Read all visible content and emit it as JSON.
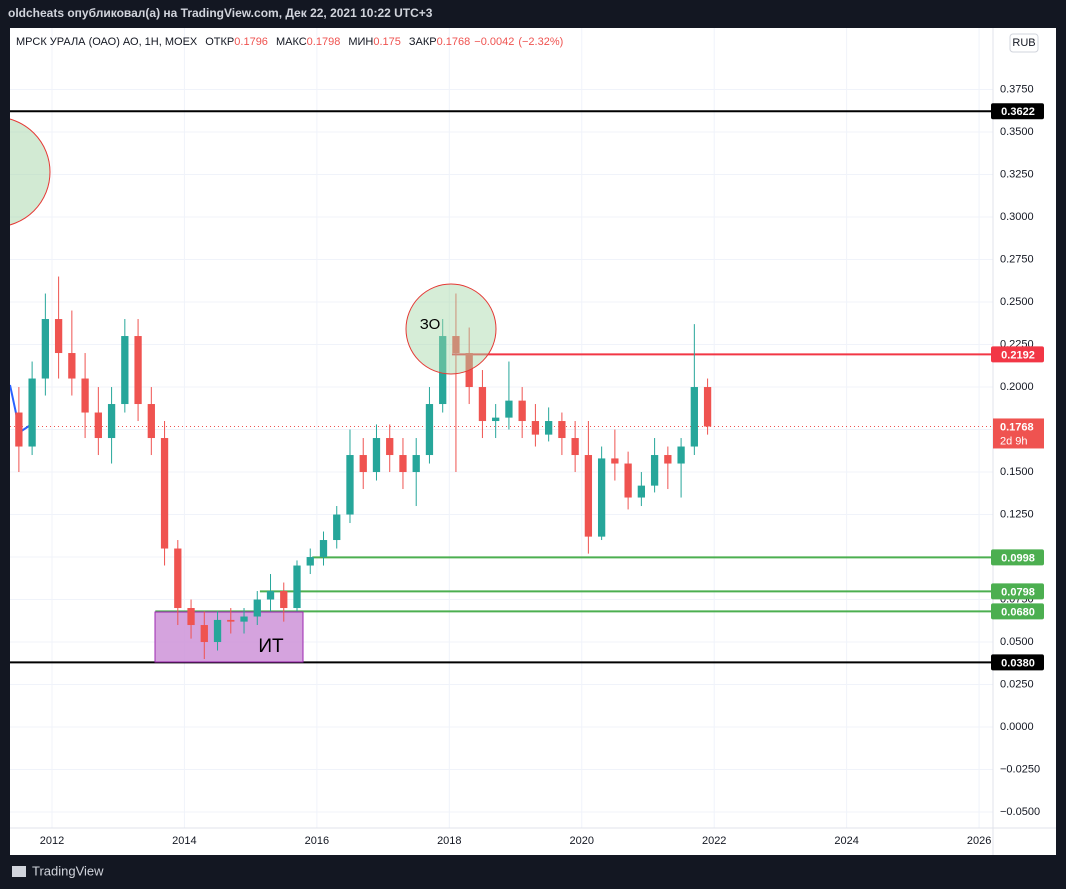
{
  "header": {
    "title": "oldcheats опубликовал(а) на TradingView.com, Дек 22, 2021 10:22 UTC+3"
  },
  "footer": {
    "brand": "TradingView"
  },
  "chart_data": {
    "type": "candlestick",
    "symbol": "МРСК УРАЛА (ОАО) АО, 1Н, MOEX",
    "ohlc_legend": [
      {
        "name": "ОТКР",
        "value": 0.1796
      },
      {
        "name": "МАКС",
        "value": 0.1798
      },
      {
        "name": "МИН",
        "value": 0.175
      },
      {
        "name": "ЗАКР",
        "value": 0.1768
      }
    ],
    "change": {
      "value": -0.0042,
      "label": "−0.0042"
    },
    "change_pct": {
      "value": -2.32,
      "label": "(−2.32%)"
    },
    "currency": "RUB",
    "up_color": "#26a69a",
    "down_color": "#ef5350",
    "x": [
      2011.5,
      2011.7,
      2011.9,
      2012.1,
      2012.3,
      2012.5,
      2012.7,
      2012.9,
      2013.1,
      2013.3,
      2013.5,
      2013.7,
      2013.9,
      2014.1,
      2014.3,
      2014.5,
      2014.7,
      2014.9,
      2015.1,
      2015.3,
      2015.5,
      2015.7,
      2015.9,
      2016.1,
      2016.3,
      2016.5,
      2016.7,
      2016.9,
      2017.1,
      2017.3,
      2017.5,
      2017.7,
      2017.9,
      2018.1,
      2018.3,
      2018.5,
      2018.7,
      2018.9,
      2019.1,
      2019.3,
      2019.5,
      2019.7,
      2019.9,
      2020.1,
      2020.3,
      2020.5,
      2020.7,
      2020.9,
      2021.1,
      2021.3,
      2021.5,
      2021.7,
      2021.9
    ],
    "open": [
      0.185,
      0.165,
      0.205,
      0.24,
      0.22,
      0.205,
      0.185,
      0.17,
      0.19,
      0.23,
      0.19,
      0.17,
      0.105,
      0.07,
      0.06,
      0.05,
      0.063,
      0.062,
      0.065,
      0.075,
      0.08,
      0.07,
      0.095,
      0.1,
      0.11,
      0.125,
      0.16,
      0.15,
      0.17,
      0.16,
      0.15,
      0.16,
      0.19,
      0.23,
      0.22,
      0.2,
      0.18,
      0.182,
      0.192,
      0.18,
      0.172,
      0.18,
      0.17,
      0.16,
      0.112,
      0.158,
      0.155,
      0.135,
      0.142,
      0.16,
      0.155,
      0.165,
      0.2
    ],
    "high": [
      0.2,
      0.215,
      0.255,
      0.265,
      0.245,
      0.22,
      0.2,
      0.2,
      0.24,
      0.24,
      0.2,
      0.18,
      0.11,
      0.075,
      0.068,
      0.068,
      0.07,
      0.07,
      0.08,
      0.09,
      0.085,
      0.098,
      0.105,
      0.115,
      0.13,
      0.175,
      0.17,
      0.178,
      0.178,
      0.17,
      0.17,
      0.2,
      0.24,
      0.255,
      0.235,
      0.21,
      0.19,
      0.215,
      0.2,
      0.19,
      0.188,
      0.185,
      0.18,
      0.18,
      0.165,
      0.175,
      0.162,
      0.15,
      0.17,
      0.165,
      0.17,
      0.237,
      0.205
    ],
    "low": [
      0.15,
      0.16,
      0.195,
      0.205,
      0.195,
      0.17,
      0.16,
      0.155,
      0.185,
      0.18,
      0.16,
      0.095,
      0.06,
      0.052,
      0.04,
      0.045,
      0.055,
      0.055,
      0.06,
      0.068,
      0.062,
      0.068,
      0.09,
      0.095,
      0.105,
      0.12,
      0.14,
      0.145,
      0.15,
      0.14,
      0.13,
      0.155,
      0.185,
      0.15,
      0.19,
      0.17,
      0.17,
      0.175,
      0.17,
      0.165,
      0.168,
      0.16,
      0.15,
      0.102,
      0.11,
      0.145,
      0.128,
      0.13,
      0.138,
      0.14,
      0.135,
      0.16,
      0.172
    ],
    "close": [
      0.165,
      0.205,
      0.24,
      0.22,
      0.205,
      0.185,
      0.17,
      0.19,
      0.23,
      0.19,
      0.17,
      0.105,
      0.07,
      0.06,
      0.05,
      0.063,
      0.062,
      0.065,
      0.075,
      0.08,
      0.07,
      0.095,
      0.1,
      0.11,
      0.125,
      0.16,
      0.15,
      0.17,
      0.16,
      0.15,
      0.16,
      0.19,
      0.23,
      0.22,
      0.2,
      0.18,
      0.182,
      0.192,
      0.18,
      0.172,
      0.18,
      0.17,
      0.16,
      0.112,
      0.158,
      0.155,
      0.135,
      0.142,
      0.16,
      0.155,
      0.165,
      0.2,
      0.1768
    ],
    "xlim": [
      2011.366,
      2026.21
    ],
    "xticks": [
      2012,
      2014,
      2016,
      2018,
      2020,
      2022,
      2024,
      2026
    ],
    "ylim": [
      -0.0594,
      0.4112
    ],
    "yticks": [
      {
        "value": -0.05,
        "label": "−0.0500"
      },
      {
        "value": -0.025,
        "label": "−0.0250"
      },
      {
        "value": 0,
        "label": "0.0000"
      },
      {
        "value": 0.025,
        "label": "0.0250"
      },
      {
        "value": 0.05,
        "label": "0.0500"
      },
      {
        "value": 0.075,
        "label": "0.0750"
      },
      {
        "value": 0.1,
        "label": "0.1000"
      },
      {
        "value": 0.125,
        "label": "0.1250"
      },
      {
        "value": 0.15,
        "label": "0.1500"
      },
      {
        "value": 0.175,
        "label": "0.1750"
      },
      {
        "value": 0.2,
        "label": "0.2000"
      },
      {
        "value": 0.225,
        "label": "0.2250"
      },
      {
        "value": 0.25,
        "label": "0.2500"
      },
      {
        "value": 0.275,
        "label": "0.2750"
      },
      {
        "value": 0.3,
        "label": "0.3000"
      },
      {
        "value": 0.325,
        "label": "0.3250"
      },
      {
        "value": 0.35,
        "label": "0.3500"
      },
      {
        "value": 0.375,
        "label": "0.3750"
      }
    ],
    "grid": true,
    "levels": [
      {
        "value": 0.3622,
        "color": "#000000"
      },
      {
        "value": 0.2192,
        "color": "#f23645",
        "from": 2018.04
      },
      {
        "value": 0.0998,
        "color": "#4caf50",
        "from": 2015.93
      },
      {
        "value": 0.0798,
        "color": "#4caf50",
        "from": 2015.14
      },
      {
        "value": 0.068,
        "label": "0.0680",
        "color": "#4caf50",
        "from": 2013.56
      },
      {
        "value": 0.038,
        "label": "0.0380",
        "color": "#000000"
      }
    ],
    "last": {
      "value": 0.1768,
      "countdown": "2d 9h",
      "color": "#ef5350"
    },
    "annotations": {
      "zo": "ЗО",
      "it": "ИТ"
    }
  }
}
